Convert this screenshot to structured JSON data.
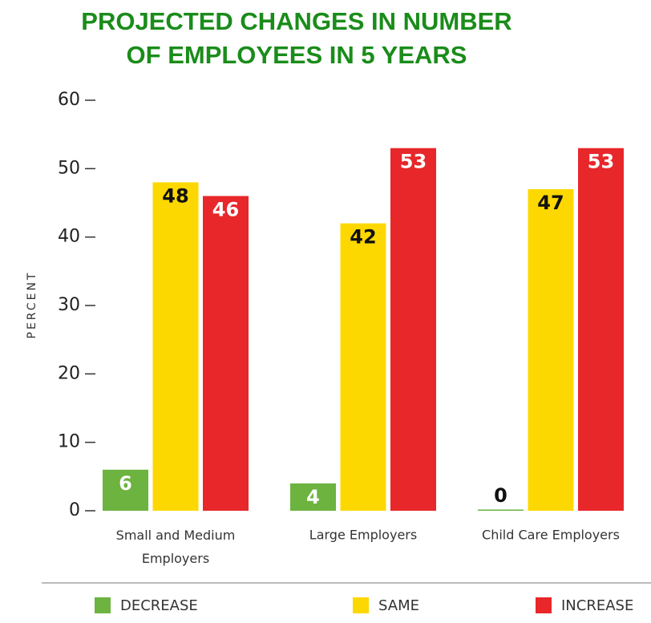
{
  "chart_data": {
    "type": "bar",
    "title": [
      "PROJECTED CHANGES IN NUMBER",
      "OF EMPLOYEES IN 5 YEARS"
    ],
    "ylabel": "PERCENT",
    "categories": [
      "Small and Medium Employers",
      "Large Employers",
      "Child Care Employers"
    ],
    "series": [
      {
        "name": "DECREASE",
        "color": "#6cb33f",
        "values": [
          6,
          4,
          0
        ]
      },
      {
        "name": "SAME",
        "color": "#fdd800",
        "values": [
          48,
          42,
          47
        ]
      },
      {
        "name": "INCREASE",
        "color": "#e8272a",
        "values": [
          46,
          53,
          53
        ]
      }
    ],
    "ylim": [
      0,
      60
    ],
    "yticks": [
      0,
      10,
      20,
      30,
      40,
      50,
      60
    ],
    "legend": "bottom"
  }
}
